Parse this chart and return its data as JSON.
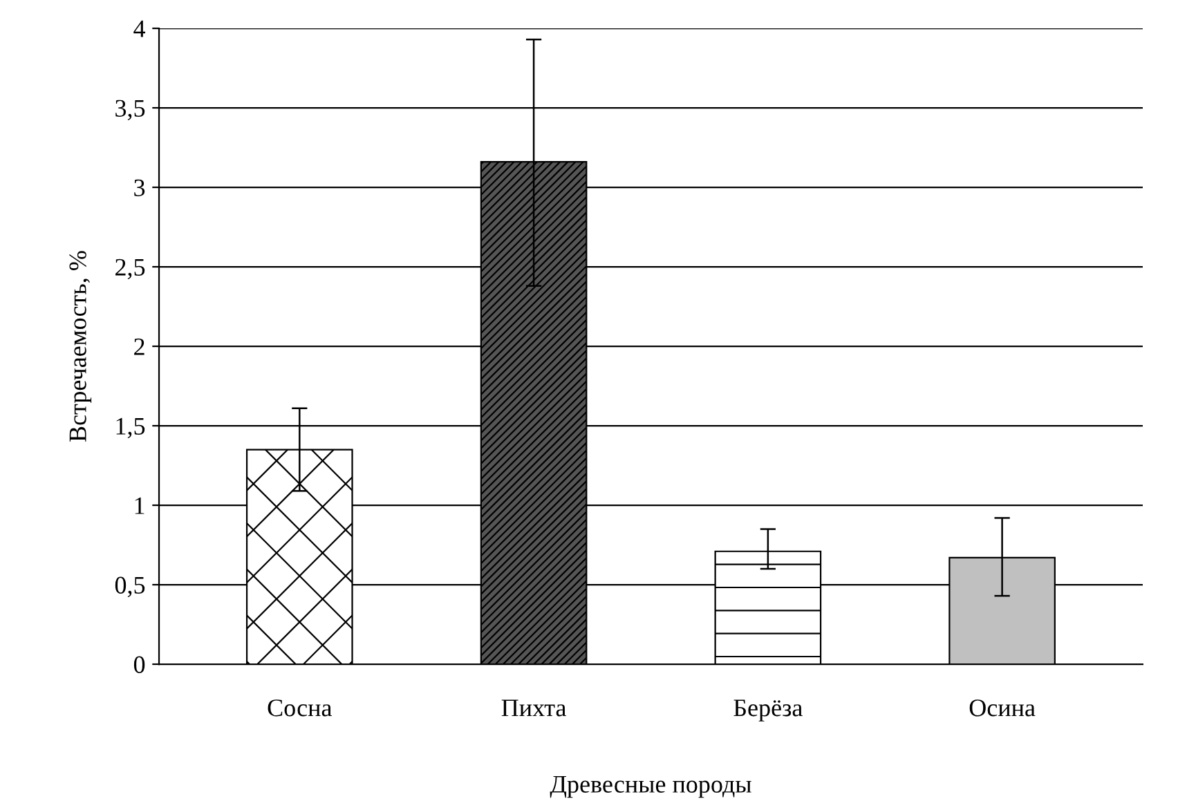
{
  "chart_data": {
    "type": "bar",
    "xlabel": "Древесные породы",
    "ylabel": "Встречаемость, %",
    "categories": [
      "Сосна",
      "Пихта",
      "Берёза",
      "Осина"
    ],
    "values": [
      1.35,
      3.16,
      0.71,
      0.67
    ],
    "errors": [
      [
        1.09,
        1.61
      ],
      [
        2.38,
        3.93
      ],
      [
        0.6,
        0.85
      ],
      [
        0.43,
        0.92
      ]
    ],
    "colors": [
      "#ffffff",
      "#555555",
      "#ffffff",
      "#c0c0c0"
    ],
    "ylim": [
      0,
      4
    ],
    "yticks": [
      0,
      {
        "value": 0.5,
        "label": "0,5"
      },
      1,
      {
        "value": 1.5,
        "label": "1,5"
      },
      2,
      {
        "value": 2.5,
        "label": "2,5"
      },
      3,
      {
        "value": 3.5,
        "label": "3,5"
      },
      4
    ],
    "grid": "y",
    "legend": false
  }
}
